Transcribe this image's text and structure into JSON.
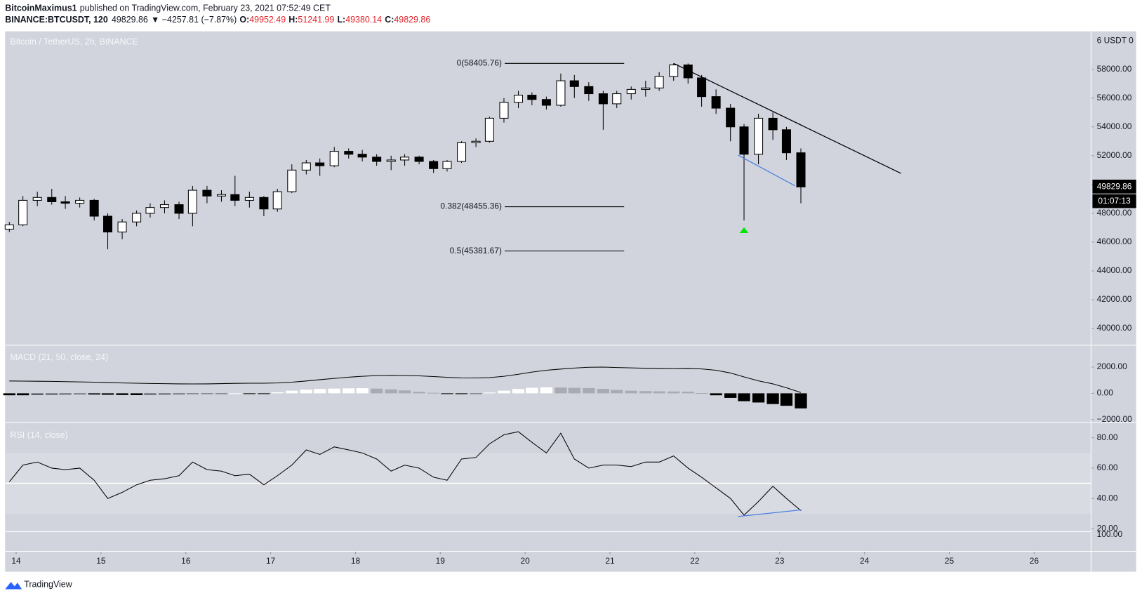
{
  "header": {
    "author": "BitcoinMaximus1",
    "published": "published on TradingView.com, February 23, 2021 07:52:49 CET",
    "symbol": "BINANCE:BTCUSDT, 120",
    "last": "49829.86",
    "change": "▼ −4257.81 (−7.87%)",
    "ohlc": [
      {
        "label": "O:",
        "value": "49952.49"
      },
      {
        "label": "H:",
        "value": "51241.99"
      },
      {
        "label": "L:",
        "value": "49380.14"
      },
      {
        "label": "C:",
        "value": "49829.86"
      }
    ]
  },
  "footer": {
    "brand": "TradingView"
  },
  "chart_data": [
    {
      "type": "candlestick",
      "title": "Bitcoin / TetherUS, 2h, BINANCE",
      "axis_header": "6 USDT 0",
      "x": [
        13.92,
        14.08,
        14.25,
        14.42,
        14.58,
        14.75,
        14.92,
        15.08,
        15.25,
        15.42,
        15.58,
        15.75,
        15.92,
        16.08,
        16.25,
        16.42,
        16.58,
        16.75,
        16.92,
        17.08,
        17.25,
        17.42,
        17.58,
        17.75,
        17.92,
        18.08,
        18.25,
        18.42,
        18.58,
        18.75,
        18.92,
        19.08,
        19.25,
        19.42,
        19.58,
        19.75,
        19.92,
        20.08,
        20.25,
        20.42,
        20.58,
        20.75,
        20.92,
        21.08,
        21.25,
        21.42,
        21.58,
        21.75,
        21.92,
        22.08,
        22.25,
        22.42,
        22.58,
        22.75,
        22.92,
        23.08,
        23.25
      ],
      "open": [
        46900,
        47200,
        48900,
        49100,
        48800,
        48700,
        48900,
        47800,
        46700,
        47400,
        48000,
        48400,
        48600,
        48000,
        49600,
        49200,
        49300,
        48900,
        49100,
        48300,
        49500,
        51000,
        51500,
        51300,
        52300,
        52100,
        51900,
        51600,
        51700,
        51900,
        51600,
        51100,
        51600,
        52900,
        53000,
        54600,
        55700,
        56200,
        55900,
        55500,
        57200,
        56800,
        56300,
        55600,
        56300,
        56600,
        56700,
        57500,
        58300,
        57400,
        56100,
        55300,
        54000,
        52100,
        54600,
        53800,
        52200
      ],
      "high": [
        47400,
        49200,
        49500,
        49700,
        49200,
        49100,
        49000,
        48000,
        47600,
        48200,
        48700,
        48900,
        48800,
        49900,
        49900,
        49600,
        50600,
        49500,
        49200,
        49700,
        51400,
        51700,
        51800,
        52600,
        52500,
        52400,
        52100,
        52000,
        52100,
        52000,
        51700,
        51700,
        53000,
        53200,
        54700,
        56000,
        56500,
        56400,
        56100,
        57700,
        57600,
        57100,
        56500,
        56500,
        56800,
        57200,
        57800,
        58400,
        58400,
        57600,
        56600,
        55600,
        54200,
        54900,
        55000,
        54000,
        52500
      ],
      "low": [
        46700,
        47100,
        48500,
        48600,
        48300,
        48400,
        47500,
        45500,
        46200,
        47100,
        47700,
        48000,
        47600,
        47100,
        48700,
        48800,
        48500,
        48400,
        47800,
        48100,
        49400,
        50700,
        50600,
        51200,
        51800,
        51600,
        51300,
        51000,
        51300,
        51400,
        50800,
        50900,
        51500,
        52600,
        52900,
        54300,
        55300,
        55500,
        55200,
        55400,
        56000,
        55800,
        53800,
        55300,
        55900,
        56100,
        56500,
        57200,
        57000,
        55400,
        54900,
        53000,
        47500,
        51400,
        53100,
        51700,
        48700
      ],
      "close": [
        47200,
        48900,
        49100,
        48800,
        48700,
        48900,
        47800,
        46700,
        47400,
        48000,
        48400,
        48600,
        48000,
        49600,
        49200,
        49300,
        48900,
        49100,
        48300,
        49500,
        51000,
        51500,
        51300,
        52300,
        52100,
        51900,
        51600,
        51700,
        51900,
        51600,
        51100,
        51600,
        52900,
        53000,
        54600,
        55700,
        56200,
        55900,
        55500,
        57200,
        56800,
        56300,
        55600,
        56300,
        56600,
        56700,
        57500,
        58300,
        57400,
        56100,
        55300,
        54000,
        52100,
        54600,
        53800,
        52200,
        49829.86
      ],
      "up_color": "#ffffff",
      "down_color": "#000000",
      "xlim": [
        13.87,
        26.67
      ],
      "xticks": [
        14,
        15,
        16,
        17,
        18,
        19,
        20,
        21,
        22,
        23,
        24,
        25,
        26
      ],
      "ylim": [
        38840,
        60630
      ],
      "yticks": [
        {
          "value": 40000,
          "label": "40000.00"
        },
        {
          "value": 42000,
          "label": "42000.00"
        },
        {
          "value": 44000,
          "label": "44000.00"
        },
        {
          "value": 46000,
          "label": "46000.00"
        },
        {
          "value": 48000,
          "label": "48000.00"
        },
        {
          "value": 50000,
          "label": "50000.00"
        },
        {
          "value": 52000,
          "label": "52000.00"
        },
        {
          "value": 54000,
          "label": "54000.00"
        },
        {
          "value": 56000,
          "label": "56000.00"
        },
        {
          "value": 58000,
          "label": "58000.00"
        }
      ],
      "last_price": 49829.86,
      "countdown": "01:07:13",
      "fib_levels": [
        {
          "value": 58405.76,
          "label": "0(58405.76)"
        },
        {
          "value": 48455.36,
          "label": "0.382(48455.36)"
        },
        {
          "value": 45381.67,
          "label": "0.5(45381.67)"
        }
      ],
      "trend_lines": [
        {
          "x": [
            21.75,
            24.43
          ],
          "y": [
            58404,
            50770
          ],
          "color": "#000000"
        },
        {
          "x": [
            22.51,
            23.18
          ],
          "y": [
            52034,
            49911
          ],
          "color": "#4a7fe0"
        }
      ],
      "markers": [
        {
          "x": 22.58,
          "y": 46830,
          "color": "#00e600"
        }
      ]
    },
    {
      "type": "macd",
      "title": "MACD (21, 50, close, 24)",
      "values": [
        940,
        930,
        920,
        910,
        890,
        870,
        850,
        820,
        790,
        770,
        750,
        735,
        720,
        715,
        720,
        740,
        760,
        770,
        770,
        790,
        850,
        940,
        1040,
        1140,
        1230,
        1300,
        1350,
        1370,
        1360,
        1330,
        1280,
        1220,
        1180,
        1170,
        1200,
        1300,
        1450,
        1620,
        1760,
        1850,
        1930,
        1990,
        2000,
        1970,
        1940,
        1910,
        1890,
        1880,
        1890,
        1860,
        1760,
        1550,
        1250,
        950,
        720,
        420,
        60
      ],
      "histogram": [
        -150,
        -150,
        -140,
        -120,
        -100,
        -80,
        -90,
        -110,
        -130,
        -140,
        -120,
        -100,
        -80,
        -60,
        -40,
        -20,
        0,
        -20,
        -40,
        80,
        200,
        280,
        330,
        360,
        380,
        390,
        360,
        300,
        220,
        120,
        40,
        -40,
        -60,
        -30,
        60,
        200,
        330,
        420,
        460,
        440,
        420,
        400,
        340,
        260,
        200,
        170,
        150,
        140,
        130,
        20,
        -150,
        -350,
        -600,
        -700,
        -820,
        -950,
        -1150
      ],
      "color": "#000000",
      "ylim": [
        -2222,
        3667
      ],
      "yticks": [
        {
          "value": -2000,
          "label": "−2000.00"
        },
        {
          "value": 0,
          "label": "0.00"
        },
        {
          "value": 2000,
          "label": "2000.00"
        }
      ]
    },
    {
      "type": "rsi",
      "title": "RSI (14, close)",
      "values": [
        51,
        62,
        64,
        60,
        59,
        60,
        52,
        40,
        44,
        49,
        52,
        53,
        55,
        64,
        59,
        58,
        55,
        56,
        49,
        55,
        62,
        72,
        69,
        74,
        72,
        70,
        66,
        58,
        62,
        60,
        54,
        52,
        66,
        67,
        76,
        82,
        84,
        77,
        70,
        83,
        66,
        60,
        62,
        62,
        61,
        64,
        64,
        68,
        60,
        54,
        47,
        40,
        29,
        38,
        48,
        40,
        32
      ],
      "color": "#000000",
      "ylim": [
        18.1,
        90.1
      ],
      "yticks": [
        {
          "value": 20,
          "label": "20.00"
        },
        {
          "value": 40,
          "label": "40.00"
        },
        {
          "value": 60,
          "label": "60.00"
        },
        {
          "value": 80,
          "label": "80.00"
        }
      ],
      "band": [
        30,
        70
      ],
      "midline": 50,
      "extra_label": "100.00",
      "trend_lines": [
        {
          "x": [
            22.51,
            23.26
          ],
          "y": [
            28.1,
            32.5
          ],
          "color": "#4a7fe0"
        }
      ]
    }
  ]
}
